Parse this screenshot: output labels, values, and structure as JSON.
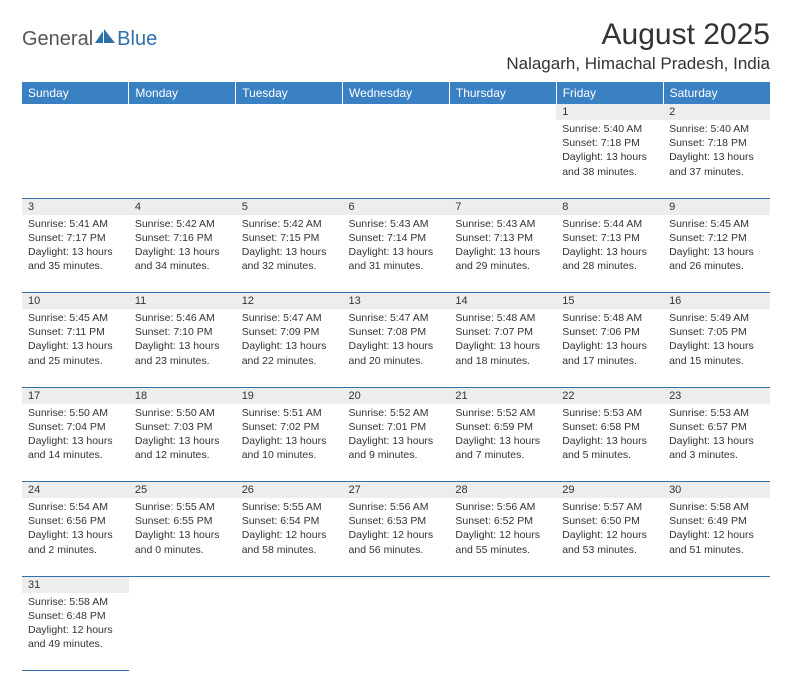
{
  "logo": {
    "general": "General",
    "blue": "Blue"
  },
  "title": "August 2025",
  "location": "Nalagarh, Himachal Pradesh, India",
  "colors": {
    "header_bg": "#3a81c4",
    "header_text": "#ffffff",
    "cell_border": "#2f6faa",
    "daynum_bg": "#ededed",
    "page_bg": "#ffffff",
    "text": "#333333",
    "logo_blue": "#2f6faa",
    "logo_gray": "#555555"
  },
  "typography": {
    "title_fontsize": 30,
    "location_fontsize": 17,
    "header_fontsize": 12,
    "daynum_fontsize": 11,
    "cell_fontsize": 10.5
  },
  "weekdays": [
    "Sunday",
    "Monday",
    "Tuesday",
    "Wednesday",
    "Thursday",
    "Friday",
    "Saturday"
  ],
  "weeks": [
    [
      null,
      null,
      null,
      null,
      null,
      {
        "n": "1",
        "sr": "Sunrise: 5:40 AM",
        "ss": "Sunset: 7:18 PM",
        "d1": "Daylight: 13 hours",
        "d2": "and 38 minutes."
      },
      {
        "n": "2",
        "sr": "Sunrise: 5:40 AM",
        "ss": "Sunset: 7:18 PM",
        "d1": "Daylight: 13 hours",
        "d2": "and 37 minutes."
      }
    ],
    [
      {
        "n": "3",
        "sr": "Sunrise: 5:41 AM",
        "ss": "Sunset: 7:17 PM",
        "d1": "Daylight: 13 hours",
        "d2": "and 35 minutes."
      },
      {
        "n": "4",
        "sr": "Sunrise: 5:42 AM",
        "ss": "Sunset: 7:16 PM",
        "d1": "Daylight: 13 hours",
        "d2": "and 34 minutes."
      },
      {
        "n": "5",
        "sr": "Sunrise: 5:42 AM",
        "ss": "Sunset: 7:15 PM",
        "d1": "Daylight: 13 hours",
        "d2": "and 32 minutes."
      },
      {
        "n": "6",
        "sr": "Sunrise: 5:43 AM",
        "ss": "Sunset: 7:14 PM",
        "d1": "Daylight: 13 hours",
        "d2": "and 31 minutes."
      },
      {
        "n": "7",
        "sr": "Sunrise: 5:43 AM",
        "ss": "Sunset: 7:13 PM",
        "d1": "Daylight: 13 hours",
        "d2": "and 29 minutes."
      },
      {
        "n": "8",
        "sr": "Sunrise: 5:44 AM",
        "ss": "Sunset: 7:13 PM",
        "d1": "Daylight: 13 hours",
        "d2": "and 28 minutes."
      },
      {
        "n": "9",
        "sr": "Sunrise: 5:45 AM",
        "ss": "Sunset: 7:12 PM",
        "d1": "Daylight: 13 hours",
        "d2": "and 26 minutes."
      }
    ],
    [
      {
        "n": "10",
        "sr": "Sunrise: 5:45 AM",
        "ss": "Sunset: 7:11 PM",
        "d1": "Daylight: 13 hours",
        "d2": "and 25 minutes."
      },
      {
        "n": "11",
        "sr": "Sunrise: 5:46 AM",
        "ss": "Sunset: 7:10 PM",
        "d1": "Daylight: 13 hours",
        "d2": "and 23 minutes."
      },
      {
        "n": "12",
        "sr": "Sunrise: 5:47 AM",
        "ss": "Sunset: 7:09 PM",
        "d1": "Daylight: 13 hours",
        "d2": "and 22 minutes."
      },
      {
        "n": "13",
        "sr": "Sunrise: 5:47 AM",
        "ss": "Sunset: 7:08 PM",
        "d1": "Daylight: 13 hours",
        "d2": "and 20 minutes."
      },
      {
        "n": "14",
        "sr": "Sunrise: 5:48 AM",
        "ss": "Sunset: 7:07 PM",
        "d1": "Daylight: 13 hours",
        "d2": "and 18 minutes."
      },
      {
        "n": "15",
        "sr": "Sunrise: 5:48 AM",
        "ss": "Sunset: 7:06 PM",
        "d1": "Daylight: 13 hours",
        "d2": "and 17 minutes."
      },
      {
        "n": "16",
        "sr": "Sunrise: 5:49 AM",
        "ss": "Sunset: 7:05 PM",
        "d1": "Daylight: 13 hours",
        "d2": "and 15 minutes."
      }
    ],
    [
      {
        "n": "17",
        "sr": "Sunrise: 5:50 AM",
        "ss": "Sunset: 7:04 PM",
        "d1": "Daylight: 13 hours",
        "d2": "and 14 minutes."
      },
      {
        "n": "18",
        "sr": "Sunrise: 5:50 AM",
        "ss": "Sunset: 7:03 PM",
        "d1": "Daylight: 13 hours",
        "d2": "and 12 minutes."
      },
      {
        "n": "19",
        "sr": "Sunrise: 5:51 AM",
        "ss": "Sunset: 7:02 PM",
        "d1": "Daylight: 13 hours",
        "d2": "and 10 minutes."
      },
      {
        "n": "20",
        "sr": "Sunrise: 5:52 AM",
        "ss": "Sunset: 7:01 PM",
        "d1": "Daylight: 13 hours",
        "d2": "and 9 minutes."
      },
      {
        "n": "21",
        "sr": "Sunrise: 5:52 AM",
        "ss": "Sunset: 6:59 PM",
        "d1": "Daylight: 13 hours",
        "d2": "and 7 minutes."
      },
      {
        "n": "22",
        "sr": "Sunrise: 5:53 AM",
        "ss": "Sunset: 6:58 PM",
        "d1": "Daylight: 13 hours",
        "d2": "and 5 minutes."
      },
      {
        "n": "23",
        "sr": "Sunrise: 5:53 AM",
        "ss": "Sunset: 6:57 PM",
        "d1": "Daylight: 13 hours",
        "d2": "and 3 minutes."
      }
    ],
    [
      {
        "n": "24",
        "sr": "Sunrise: 5:54 AM",
        "ss": "Sunset: 6:56 PM",
        "d1": "Daylight: 13 hours",
        "d2": "and 2 minutes."
      },
      {
        "n": "25",
        "sr": "Sunrise: 5:55 AM",
        "ss": "Sunset: 6:55 PM",
        "d1": "Daylight: 13 hours",
        "d2": "and 0 minutes."
      },
      {
        "n": "26",
        "sr": "Sunrise: 5:55 AM",
        "ss": "Sunset: 6:54 PM",
        "d1": "Daylight: 12 hours",
        "d2": "and 58 minutes."
      },
      {
        "n": "27",
        "sr": "Sunrise: 5:56 AM",
        "ss": "Sunset: 6:53 PM",
        "d1": "Daylight: 12 hours",
        "d2": "and 56 minutes."
      },
      {
        "n": "28",
        "sr": "Sunrise: 5:56 AM",
        "ss": "Sunset: 6:52 PM",
        "d1": "Daylight: 12 hours",
        "d2": "and 55 minutes."
      },
      {
        "n": "29",
        "sr": "Sunrise: 5:57 AM",
        "ss": "Sunset: 6:50 PM",
        "d1": "Daylight: 12 hours",
        "d2": "and 53 minutes."
      },
      {
        "n": "30",
        "sr": "Sunrise: 5:58 AM",
        "ss": "Sunset: 6:49 PM",
        "d1": "Daylight: 12 hours",
        "d2": "and 51 minutes."
      }
    ],
    [
      {
        "n": "31",
        "sr": "Sunrise: 5:58 AM",
        "ss": "Sunset: 6:48 PM",
        "d1": "Daylight: 12 hours",
        "d2": "and 49 minutes."
      },
      null,
      null,
      null,
      null,
      null,
      null
    ]
  ]
}
